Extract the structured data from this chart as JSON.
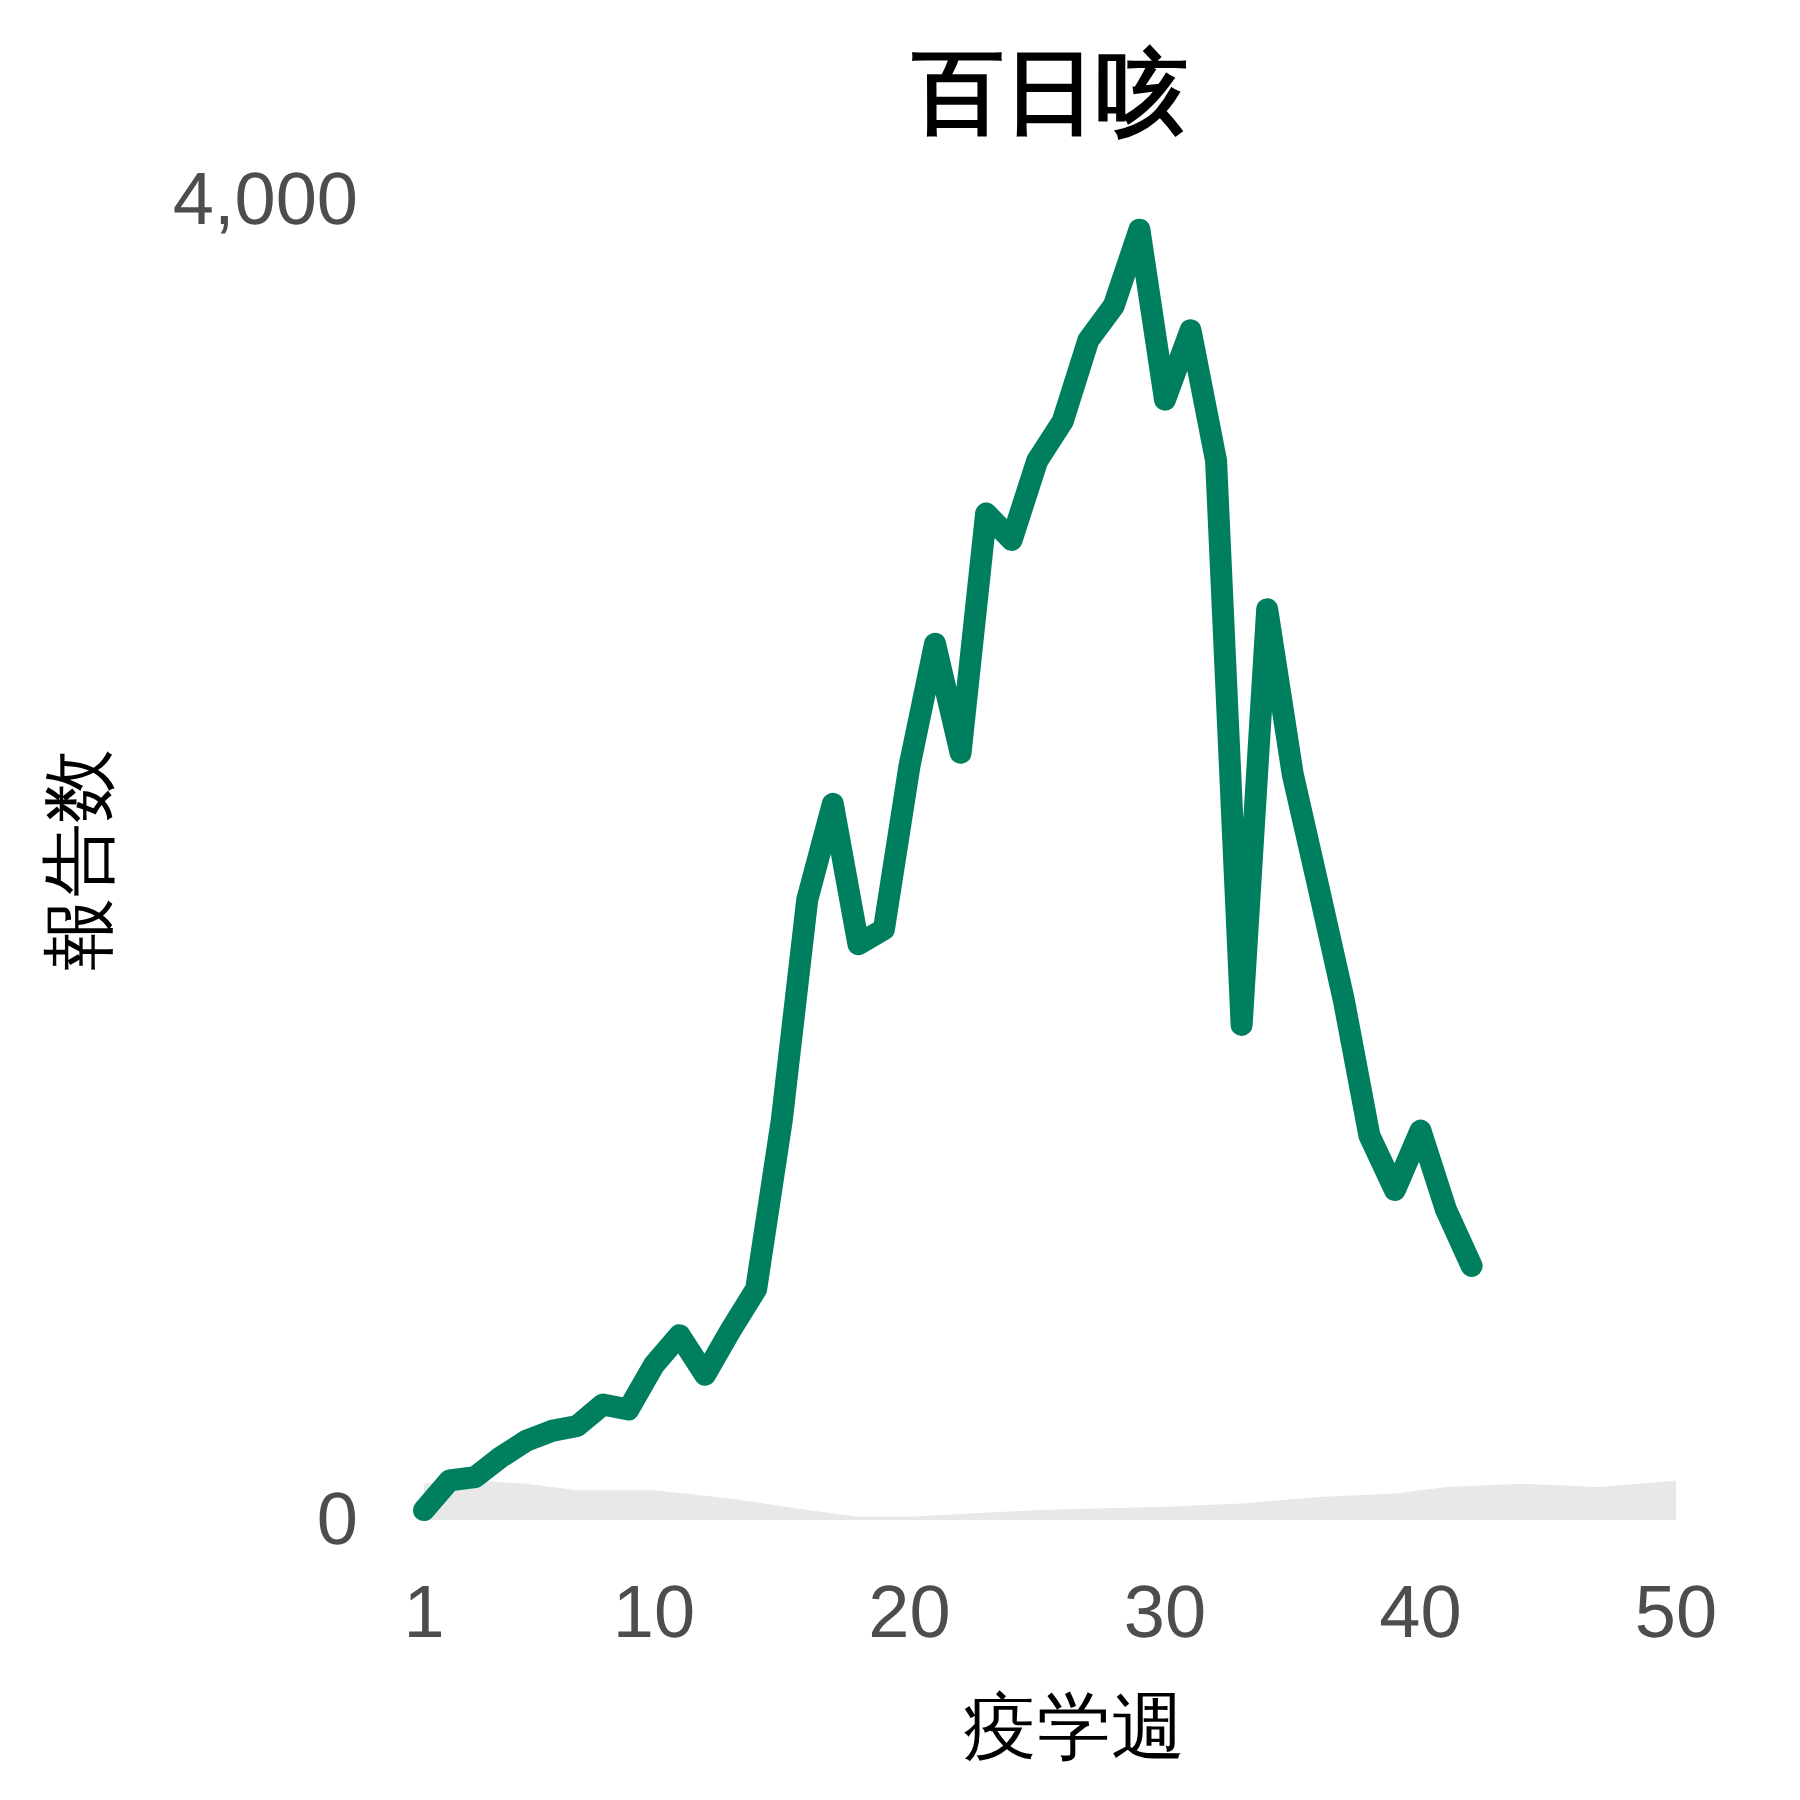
{
  "chart_data": {
    "type": "line",
    "title": "百日咳",
    "xlabel": "疫学週",
    "ylabel": "報告数",
    "xlim": [
      1,
      50
    ],
    "xticks": [
      1,
      10,
      20,
      30,
      40,
      50
    ],
    "ylim": [
      0,
      4000
    ],
    "yticks": [
      0,
      {
        "value": 4000,
        "label": "4,000"
      }
    ],
    "grid": false,
    "series": [
      {
        "type": "area",
        "color": "#e8e8e8",
        "x": [
          1,
          3,
          5,
          7,
          10,
          13,
          16,
          18,
          20,
          25,
          30,
          33,
          36,
          39,
          41,
          44,
          47,
          50
        ],
        "values": [
          110,
          120,
          110,
          90,
          90,
          65,
          30,
          10,
          10,
          30,
          40,
          50,
          70,
          80,
          100,
          110,
          100,
          120
        ]
      },
      {
        "color": "#007f5f",
        "x": [
          1,
          2,
          3,
          4,
          5,
          6,
          7,
          8,
          9,
          10,
          11,
          12,
          13,
          14,
          15,
          16,
          17,
          18,
          19,
          20,
          21,
          22,
          23,
          24,
          25,
          26,
          27,
          28,
          29,
          30,
          31,
          32,
          33,
          34,
          35,
          36,
          37,
          38,
          39,
          40,
          41,
          42
        ],
        "values": [
          30,
          120,
          130,
          190,
          240,
          270,
          285,
          350,
          335,
          470,
          560,
          440,
          575,
          700,
          1210,
          1880,
          2170,
          1745,
          1790,
          2285,
          2655,
          2325,
          3050,
          2970,
          3210,
          3330,
          3575,
          3680,
          3910,
          3395,
          3605,
          3210,
          1500,
          2760,
          2260,
          1920,
          1575,
          1165,
          1000,
          1180,
          940,
          770
        ]
      }
    ]
  }
}
